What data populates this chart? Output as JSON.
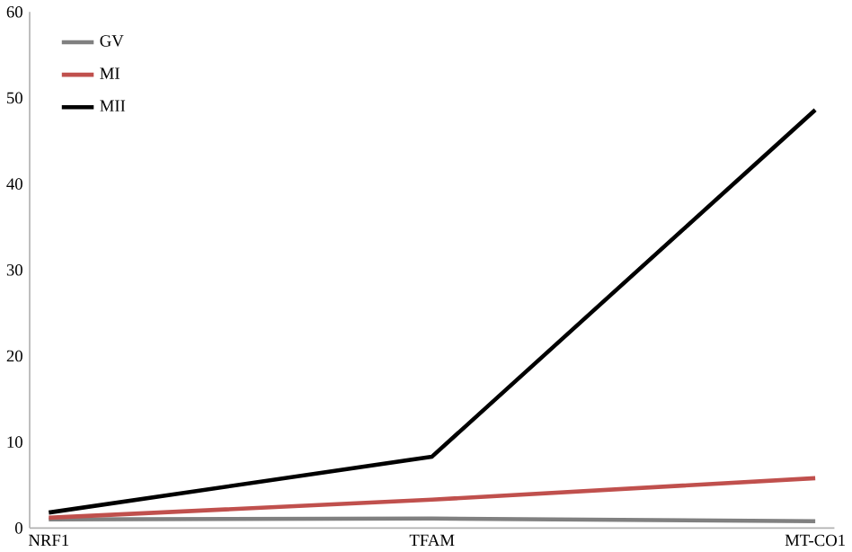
{
  "chart_data": {
    "type": "line",
    "categories": [
      "NRF1",
      "TFAM",
      "MT-CO1"
    ],
    "series": [
      {
        "name": "GV",
        "color": "#808080",
        "values": [
          1.0,
          1.1,
          0.8
        ]
      },
      {
        "name": "MI",
        "color": "#c0504d",
        "values": [
          1.2,
          3.3,
          5.8
        ]
      },
      {
        "name": "MII",
        "color": "#000000",
        "values": [
          1.8,
          8.3,
          48.6
        ]
      }
    ],
    "ylim": [
      0,
      60
    ],
    "yticks": [
      0,
      10,
      20,
      30,
      40,
      50,
      60
    ],
    "grid": false,
    "legend": "top left",
    "marker": "none",
    "line_style": "solid"
  }
}
